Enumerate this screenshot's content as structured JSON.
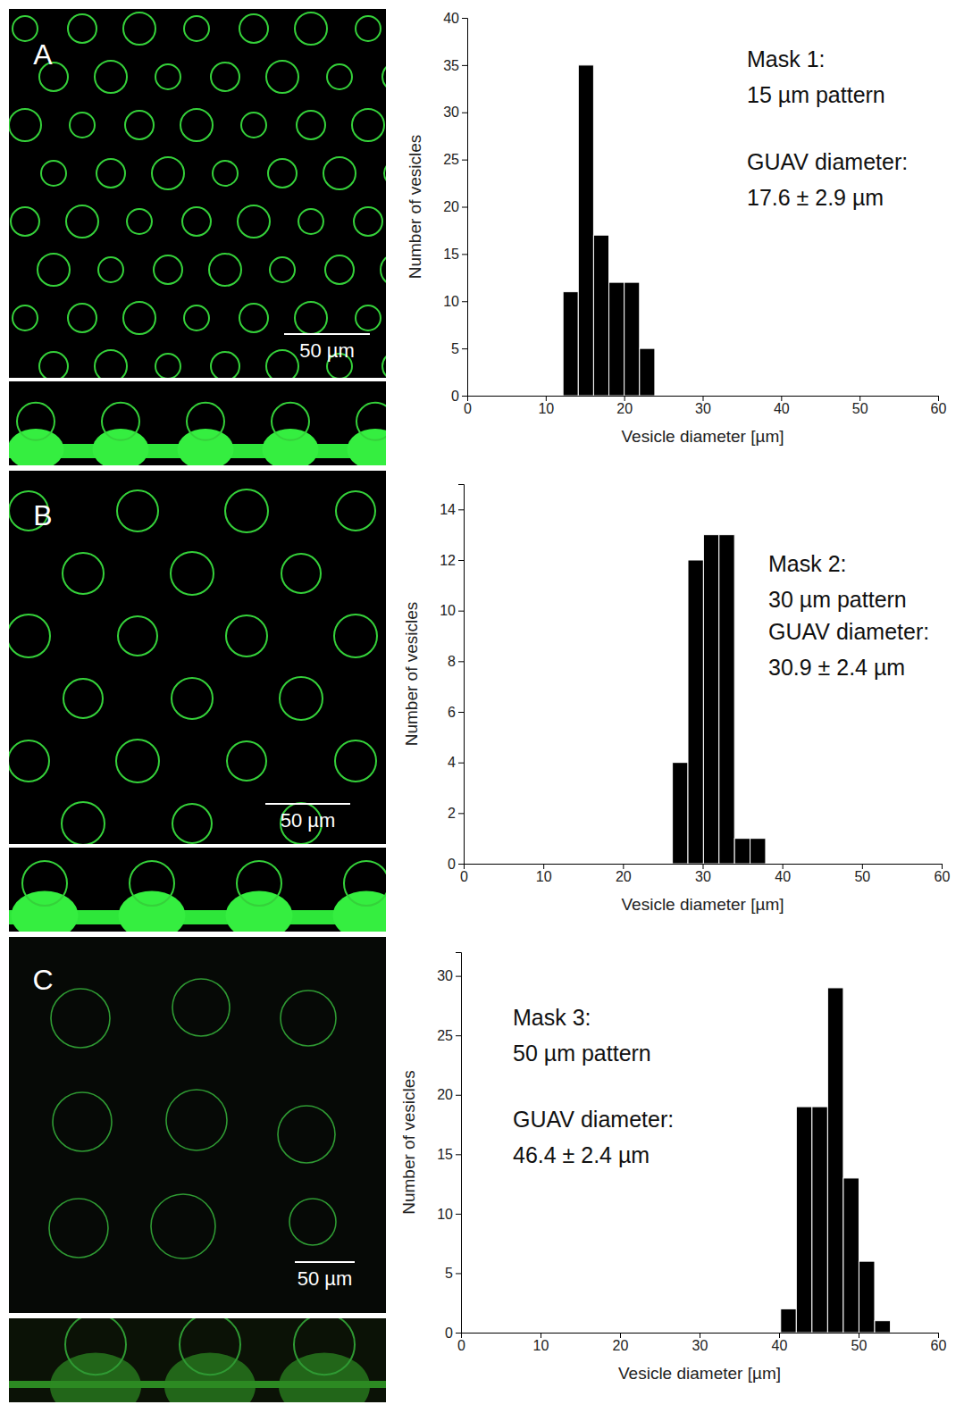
{
  "chart_data": [
    {
      "type": "histogram",
      "panel_label": "A",
      "image_scale_label": "50 µm",
      "bins": [
        12.2,
        14.15,
        16.1,
        18.05,
        20,
        21.95,
        23.9
      ],
      "values": [
        11,
        35,
        17,
        12,
        12,
        5
      ],
      "color": "#000000",
      "xlim": [
        0,
        60
      ],
      "ylim": [
        0,
        40
      ],
      "xticks": [
        0,
        10,
        20,
        30,
        40,
        50,
        60
      ],
      "yticks": [
        0,
        5,
        10,
        15,
        20,
        25,
        30,
        35,
        40
      ],
      "x_label": "Vesicle diameter [µm]",
      "y_label": "Number of vesicles",
      "annotations": [
        "Mask 1:",
        "15 µm pattern",
        "GUAV diameter:",
        "17.6 ± 2.9 µm"
      ]
    },
    {
      "type": "histogram",
      "panel_label": "B",
      "image_scale_label": "50 µm",
      "bins": [
        26.2,
        28.15,
        30.1,
        32.05,
        34,
        35.95,
        37.9
      ],
      "values": [
        4,
        12,
        13,
        13,
        1,
        1
      ],
      "color": "#000000",
      "xlim": [
        0,
        60
      ],
      "ylim": [
        0,
        15
      ],
      "xticks": [
        0,
        10,
        20,
        30,
        40,
        50,
        60
      ],
      "yticks": [
        0,
        2,
        4,
        6,
        8,
        10,
        12,
        14
      ],
      "x_label": "Vesicle diameter [µm]",
      "y_label": "Number of vesicles",
      "annotations": [
        "Mask 2:",
        "30 µm pattern",
        "GUAV diameter:",
        "30.9 ± 2.4 µm"
      ]
    },
    {
      "type": "histogram",
      "panel_label": "C",
      "image_scale_label": "50 µm",
      "bins": [
        40.2,
        42.17,
        44.14,
        46.11,
        48.08,
        50.05,
        52.02,
        54
      ],
      "values": [
        2,
        19,
        19,
        29,
        13,
        6,
        1
      ],
      "color": "#000000",
      "xlim": [
        0,
        60
      ],
      "ylim": [
        0,
        32
      ],
      "xticks": [
        0,
        10,
        20,
        30,
        40,
        50,
        60
      ],
      "yticks": [
        0,
        5,
        10,
        15,
        20,
        25,
        30
      ],
      "x_label": "Vesicle diameter [µm]",
      "y_label": "Number of vesicles",
      "annotations": [
        "Mask 3:",
        "50 µm pattern",
        "GUAV diameter:",
        "46.4 ± 2.4 µm"
      ]
    }
  ]
}
